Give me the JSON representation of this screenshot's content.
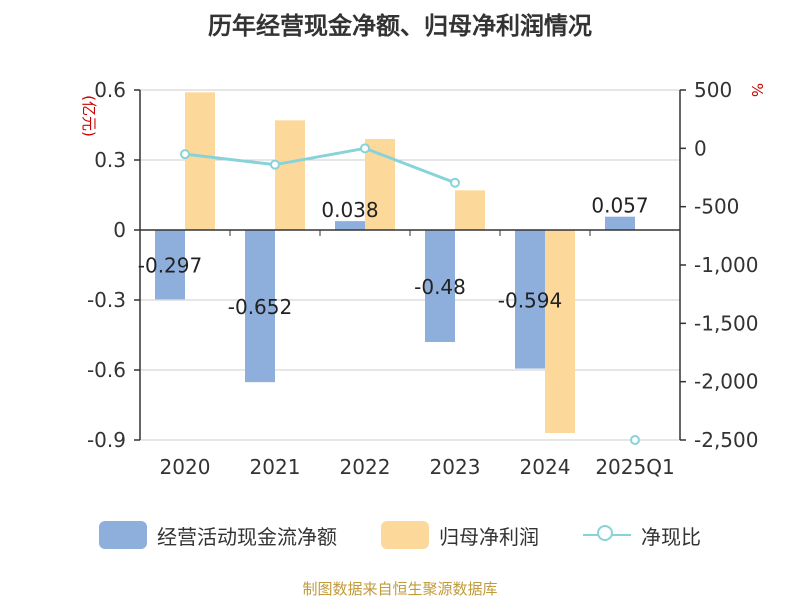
{
  "chart_data": {
    "type": "bar",
    "title": "历年经营现金净额、归母净利润情况",
    "categories": [
      "2020",
      "2021",
      "2022",
      "2023",
      "2024",
      "2025Q1"
    ],
    "left_axis_unit": "(亿元)",
    "right_axis_unit": "%",
    "left_ylim": [
      -0.9,
      0.6
    ],
    "left_ticks": [
      0.6,
      0.3,
      0,
      -0.3,
      -0.6,
      -0.9
    ],
    "left_tick_labels": [
      "0.6",
      "0.3",
      "0",
      "-0.3",
      "-0.6",
      "-0.9"
    ],
    "right_ylim": [
      -2500,
      500
    ],
    "right_ticks": [
      500,
      0,
      -500,
      -1000,
      -1500,
      -2000,
      -2500
    ],
    "right_tick_labels": [
      "500",
      "0",
      "-500",
      "-1,000",
      "-1,500",
      "-2,000",
      "-2,500"
    ],
    "grid": true,
    "legend_position": "bottom",
    "series": [
      {
        "name": "经营活动现金流净额",
        "type": "bar",
        "axis": "left",
        "color": "#8eaedc",
        "values": [
          -0.297,
          -0.652,
          0.038,
          -0.48,
          -0.594,
          0.057
        ],
        "data_labels": [
          "-0.297",
          "-0.652",
          "0.038",
          "-0.48",
          "-0.594",
          "0.057"
        ]
      },
      {
        "name": "归母净利润",
        "type": "bar",
        "axis": "left",
        "color": "#fdd89b",
        "values": [
          0.59,
          0.47,
          0.39,
          0.17,
          -0.87,
          0.0
        ]
      },
      {
        "name": "净现比",
        "type": "line",
        "axis": "right",
        "color": "#88d3d9",
        "values": [
          -50,
          -140,
          0,
          -295,
          null,
          -2500
        ]
      }
    ]
  },
  "footer": {
    "source": "制图数据来自恒生聚源数据库"
  }
}
